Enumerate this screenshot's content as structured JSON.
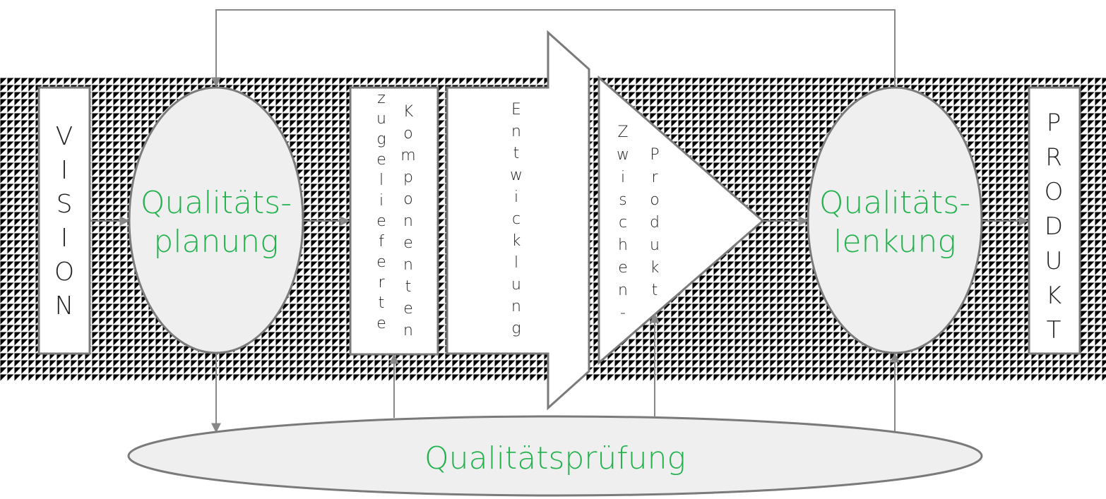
{
  "labels": {
    "vision": "VISION",
    "planning_line1": "Qualitäts-",
    "planning_line2": "planung",
    "components_left": "zugelieferte",
    "components_right": "Komponenten",
    "development": "Entwicklung",
    "intermediate_left": "Zwischen-",
    "intermediate_right": "Produkt",
    "control_line1": "Qualitäts-",
    "control_line2": "lenkung",
    "testing": "Qualitätsprüfung",
    "product": "PRODUKT"
  },
  "colors": {
    "accent_text": "#22b14c",
    "outline": "#7a7a7a",
    "fill": "#efefef"
  }
}
